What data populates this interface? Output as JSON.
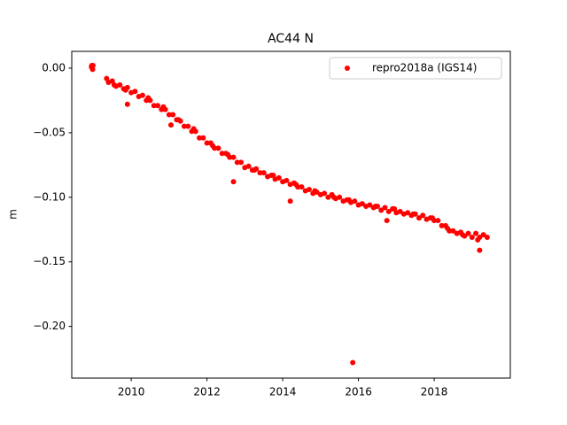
{
  "chart_data": {
    "type": "scatter",
    "title": "AC44 N",
    "y_label": "m",
    "xlim": [
      2008.43,
      2020.01
    ],
    "ylim": [
      -0.24,
      0.013
    ],
    "xticks": [
      2010,
      2012,
      2014,
      2016,
      2018
    ],
    "yticks": [
      {
        "value": 0.0,
        "label": "0.00"
      },
      {
        "value": -0.05,
        "label": "−0.05"
      },
      {
        "value": -0.1,
        "label": "−0.10"
      },
      {
        "value": -0.15,
        "label": "−0.15"
      },
      {
        "value": -0.2,
        "label": "−0.20"
      }
    ],
    "grid": false,
    "legend_position": "upper-right",
    "series": [
      {
        "name": "repro2018a (IGS14)",
        "color": "#ff0000",
        "x": [
          2008.95,
          2008.96,
          2008.97,
          2008.98,
          2008.99,
          2009.35,
          2009.4,
          2009.5,
          2009.6,
          2009.7,
          2009.8,
          2009.9,
          2010.0,
          2010.1,
          2010.2,
          2010.3,
          2010.4,
          2010.5,
          2010.6,
          2010.7,
          2010.8,
          2010.9,
          2011.0,
          2011.1,
          2011.2,
          2011.3,
          2011.4,
          2011.5,
          2011.6,
          2011.7,
          2011.8,
          2011.9,
          2012.0,
          2012.1,
          2012.2,
          2012.3,
          2012.4,
          2012.5,
          2012.6,
          2012.7,
          2012.8,
          2012.9,
          2013.0,
          2013.1,
          2013.2,
          2013.3,
          2013.4,
          2013.5,
          2013.6,
          2013.7,
          2013.8,
          2013.9,
          2014.0,
          2014.1,
          2014.2,
          2014.3,
          2014.4,
          2014.5,
          2014.6,
          2014.7,
          2014.8,
          2014.9,
          2015.0,
          2015.1,
          2015.2,
          2015.3,
          2015.4,
          2015.5,
          2015.6,
          2015.7,
          2015.8,
          2015.9,
          2016.0,
          2016.1,
          2016.2,
          2016.3,
          2016.4,
          2016.5,
          2016.6,
          2016.7,
          2016.8,
          2016.9,
          2017.0,
          2017.1,
          2017.2,
          2017.3,
          2017.4,
          2017.5,
          2017.6,
          2017.7,
          2017.8,
          2017.9,
          2018.0,
          2018.1,
          2018.2,
          2018.3,
          2018.4,
          2018.5,
          2018.6,
          2018.7,
          2018.8,
          2018.9,
          2019.0,
          2019.1,
          2019.2,
          2019.3,
          2019.4,
          2009.55,
          2009.85,
          2010.45,
          2010.85,
          2011.25,
          2011.65,
          2012.15,
          2012.55,
          2013.25,
          2013.75,
          2014.35,
          2014.85,
          2015.35,
          2015.75,
          2016.45,
          2016.95,
          2017.45,
          2017.95,
          2018.35,
          2018.75,
          2019.15,
          2009.9,
          2011.05,
          2012.7,
          2014.2,
          2015.85,
          2016.75,
          2019.2
        ],
        "values": [
          0.001,
          0.002,
          0.0,
          -0.001,
          0.002,
          -0.008,
          -0.011,
          -0.01,
          -0.014,
          -0.013,
          -0.016,
          -0.015,
          -0.019,
          -0.018,
          -0.022,
          -0.021,
          -0.025,
          -0.025,
          -0.029,
          -0.029,
          -0.032,
          -0.032,
          -0.036,
          -0.036,
          -0.04,
          -0.041,
          -0.045,
          -0.045,
          -0.049,
          -0.049,
          -0.054,
          -0.054,
          -0.058,
          -0.058,
          -0.062,
          -0.062,
          -0.066,
          -0.066,
          -0.069,
          -0.069,
          -0.073,
          -0.073,
          -0.077,
          -0.076,
          -0.079,
          -0.078,
          -0.081,
          -0.081,
          -0.084,
          -0.083,
          -0.086,
          -0.085,
          -0.088,
          -0.087,
          -0.09,
          -0.089,
          -0.092,
          -0.092,
          -0.095,
          -0.094,
          -0.097,
          -0.096,
          -0.098,
          -0.097,
          -0.1,
          -0.098,
          -0.101,
          -0.1,
          -0.103,
          -0.102,
          -0.104,
          -0.103,
          -0.106,
          -0.105,
          -0.107,
          -0.106,
          -0.108,
          -0.107,
          -0.11,
          -0.108,
          -0.111,
          -0.109,
          -0.112,
          -0.111,
          -0.113,
          -0.112,
          -0.114,
          -0.113,
          -0.116,
          -0.114,
          -0.117,
          -0.116,
          -0.118,
          -0.118,
          -0.122,
          -0.122,
          -0.126,
          -0.126,
          -0.128,
          -0.127,
          -0.13,
          -0.128,
          -0.131,
          -0.128,
          -0.131,
          -0.129,
          -0.131,
          -0.013,
          -0.017,
          -0.023,
          -0.03,
          -0.04,
          -0.047,
          -0.06,
          -0.067,
          -0.079,
          -0.083,
          -0.09,
          -0.095,
          -0.1,
          -0.102,
          -0.107,
          -0.109,
          -0.113,
          -0.116,
          -0.124,
          -0.129,
          -0.133,
          -0.028,
          -0.044,
          -0.088,
          -0.103,
          -0.228,
          -0.118,
          -0.141
        ]
      }
    ]
  }
}
